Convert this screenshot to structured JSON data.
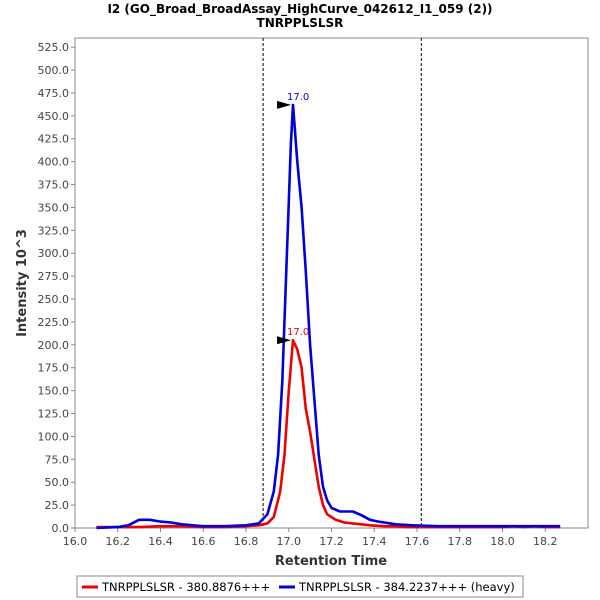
{
  "chart_data": {
    "type": "line",
    "title": "I2 (GO_Broad_BroadAssay_HighCurve_042612_I1_059 (2))",
    "subtitle": "TNRPPLSLSR",
    "xlabel": "Retention Time",
    "ylabel": "Intensity 10^3",
    "xlim": [
      16.0,
      18.4
    ],
    "ylim": [
      0,
      535
    ],
    "x_ticks": [
      "16.0",
      "16.2",
      "16.4",
      "16.6",
      "16.8",
      "17.0",
      "17.2",
      "17.4",
      "17.6",
      "17.8",
      "18.0",
      "18.2"
    ],
    "y_ticks": [
      "0.0",
      "25.0",
      "50.0",
      "75.0",
      "100.0",
      "125.0",
      "150.0",
      "175.0",
      "200.0",
      "225.0",
      "250.0",
      "275.0",
      "300.0",
      "325.0",
      "350.0",
      "375.0",
      "400.0",
      "425.0",
      "450.0",
      "475.0",
      "500.0",
      "525.0"
    ],
    "boundaries": [
      16.88,
      17.62
    ],
    "grid": false,
    "legend_position": "bottom",
    "series": [
      {
        "name": "TNRPPLSLSR - 380.8876+++",
        "color": "#ee0000",
        "peak_label": "17.0",
        "peak": [
          17.02,
          205
        ],
        "points": [
          [
            16.1,
            1
          ],
          [
            16.2,
            1
          ],
          [
            16.3,
            1
          ],
          [
            16.4,
            2
          ],
          [
            16.5,
            2
          ],
          [
            16.6,
            1
          ],
          [
            16.7,
            1
          ],
          [
            16.8,
            2
          ],
          [
            16.86,
            3
          ],
          [
            16.9,
            5
          ],
          [
            16.93,
            12
          ],
          [
            16.96,
            40
          ],
          [
            16.98,
            80
          ],
          [
            17.0,
            150
          ],
          [
            17.02,
            205
          ],
          [
            17.04,
            195
          ],
          [
            17.06,
            175
          ],
          [
            17.08,
            130
          ],
          [
            17.1,
            105
          ],
          [
            17.12,
            75
          ],
          [
            17.14,
            45
          ],
          [
            17.16,
            25
          ],
          [
            17.18,
            15
          ],
          [
            17.22,
            9
          ],
          [
            17.26,
            6
          ],
          [
            17.3,
            5
          ],
          [
            17.34,
            4
          ],
          [
            17.38,
            3
          ],
          [
            17.45,
            2
          ],
          [
            17.5,
            2
          ],
          [
            17.55,
            1
          ],
          [
            17.6,
            1
          ],
          [
            17.7,
            1
          ],
          [
            17.8,
            1
          ],
          [
            17.9,
            1
          ],
          [
            18.0,
            1
          ],
          [
            18.05,
            2
          ],
          [
            18.1,
            1
          ],
          [
            18.15,
            2
          ],
          [
            18.2,
            1
          ],
          [
            18.27,
            1
          ]
        ]
      },
      {
        "name": "TNRPPLSLSR - 384.2237+++ (heavy)",
        "color": "#0000dd",
        "peak_label": "17.0",
        "peak": [
          17.02,
          462
        ],
        "points": [
          [
            16.1,
            0
          ],
          [
            16.2,
            1
          ],
          [
            16.25,
            3
          ],
          [
            16.3,
            9
          ],
          [
            16.35,
            9
          ],
          [
            16.4,
            7
          ],
          [
            16.45,
            6
          ],
          [
            16.5,
            4
          ],
          [
            16.55,
            3
          ],
          [
            16.6,
            2
          ],
          [
            16.7,
            2
          ],
          [
            16.8,
            3
          ],
          [
            16.86,
            5
          ],
          [
            16.9,
            15
          ],
          [
            16.93,
            40
          ],
          [
            16.95,
            80
          ],
          [
            16.97,
            160
          ],
          [
            16.99,
            290
          ],
          [
            17.01,
            420
          ],
          [
            17.02,
            462
          ],
          [
            17.04,
            400
          ],
          [
            17.06,
            350
          ],
          [
            17.08,
            280
          ],
          [
            17.1,
            200
          ],
          [
            17.12,
            140
          ],
          [
            17.14,
            80
          ],
          [
            17.16,
            45
          ],
          [
            17.18,
            30
          ],
          [
            17.2,
            22
          ],
          [
            17.24,
            18
          ],
          [
            17.3,
            18
          ],
          [
            17.34,
            14
          ],
          [
            17.38,
            9
          ],
          [
            17.42,
            7
          ],
          [
            17.5,
            4
          ],
          [
            17.58,
            3
          ],
          [
            17.7,
            2
          ],
          [
            17.8,
            2
          ],
          [
            17.9,
            2
          ],
          [
            18.0,
            2
          ],
          [
            18.1,
            2
          ],
          [
            18.2,
            2
          ],
          [
            18.27,
            2
          ]
        ]
      }
    ]
  }
}
